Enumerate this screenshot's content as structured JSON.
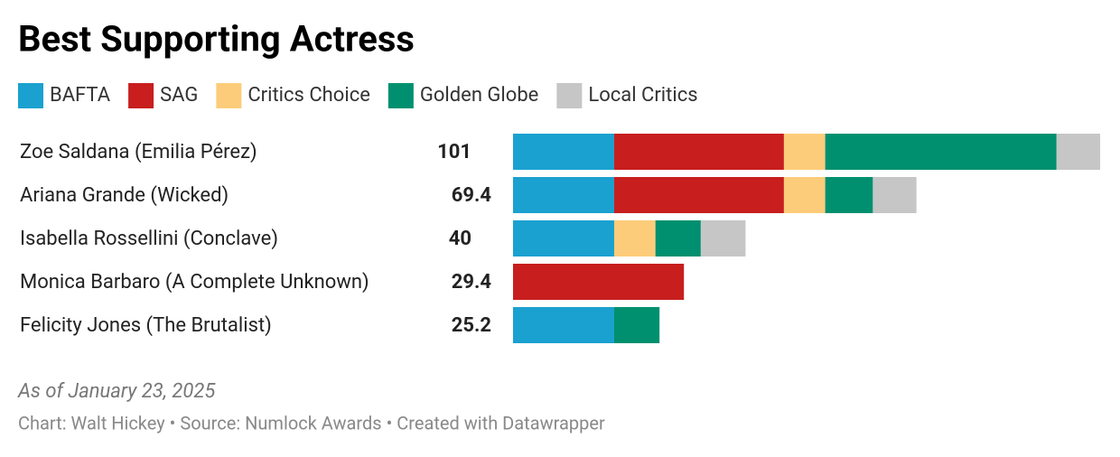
{
  "chart_data": {
    "type": "stacked-bar-horizontal",
    "title": "Best Supporting Actress",
    "categories": [
      "Zoe Saldana (Emilia Pérez)",
      "Ariana Grande (Wicked)",
      "Isabella Rossellini (Conclave)",
      "Monica Barbaro (A Complete Unknown)",
      "Felicity Jones (The Brutalist)"
    ],
    "totals": [
      101,
      69.4,
      40,
      29.4,
      25.2
    ],
    "series": [
      {
        "name": "BAFTA",
        "color": "#1aa1d0",
        "values": [
          17.4,
          17.4,
          17.4,
          null,
          17.4
        ]
      },
      {
        "name": "SAG",
        "color": "#c81e1e",
        "values": [
          29.2,
          29.2,
          null,
          29.4,
          null
        ]
      },
      {
        "name": "Critics Choice",
        "color": "#fdcc7a",
        "values": [
          7.1,
          7.1,
          7.1,
          null,
          null
        ]
      },
      {
        "name": "Golden Globe",
        "color": "#00906f",
        "values": [
          39.8,
          8.2,
          7.8,
          null,
          7.8
        ]
      },
      {
        "name": "Local Critics",
        "color": "#c6c6c6",
        "values": [
          7.5,
          7.5,
          7.7,
          null,
          null
        ]
      }
    ],
    "note": "As of January 23, 2025",
    "source": "Chart: Walt Hickey • Source: Numlock Awards • Created with Datawrapper"
  }
}
